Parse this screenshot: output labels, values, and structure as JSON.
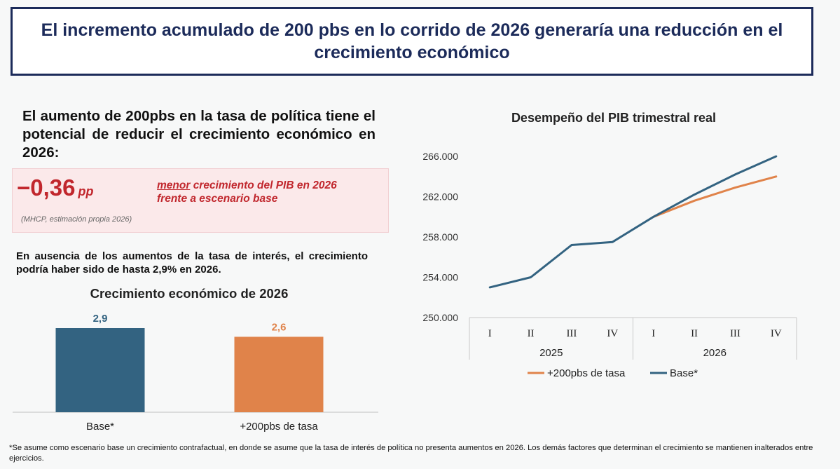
{
  "header": {
    "title": "El incremento acumulado de 200 pbs en lo corrido de 2026 generaría una reducción en el crecimiento económico"
  },
  "left_panel": {
    "lead_text": "El aumento de 200pbs en la tasa de política tiene el potencial de reducir el crecimiento económico en 2026:",
    "highlight": {
      "value": "−0,36",
      "unit": "pp",
      "emphasis": "menor",
      "description": "crecimiento del PIB en 2026 frente a escenario base",
      "source": "(MHCP, estimación propia 2026)"
    },
    "paragraph": "En ausencia de los aumentos de la tasa de interés, el crecimiento podría haber sido de hasta 2,9% en 2026."
  },
  "footnote": "*Se asume como escenario base un crecimiento contrafactual, en donde se asume que la tasa de interés de política no presenta aumentos en 2026. Los demás factores que determinan el crecimiento se mantienen inalterados entre ejercicios.",
  "colors": {
    "base": "#336381",
    "scenario": "#e0834a",
    "navy": "#1c2b5a",
    "red": "#c1272d"
  },
  "chart_data": [
    {
      "type": "bar",
      "title": "Crecimiento económico de 2026",
      "categories": [
        "Base*",
        "+200pbs de tasa"
      ],
      "values": [
        2.9,
        2.6
      ],
      "value_labels": [
        "2,9",
        "2,6"
      ],
      "colors": [
        "#336381",
        "#e0834a"
      ],
      "ylim": [
        0,
        2.9
      ]
    },
    {
      "type": "line",
      "title": "Desempeño del PIB trimestral real",
      "x_quarters": [
        "I",
        "II",
        "III",
        "IV",
        "I",
        "II",
        "III",
        "IV"
      ],
      "x_years": [
        "2025",
        "2026"
      ],
      "ylim": [
        250000,
        266000
      ],
      "yticks": [
        250000,
        254000,
        258000,
        262000,
        266000
      ],
      "ytick_labels": [
        "250.000",
        "254.000",
        "258.000",
        "262.000",
        "266.000"
      ],
      "series": [
        {
          "name": "+200pbs de tasa",
          "color": "#e0834a",
          "values": [
            null,
            null,
            null,
            null,
            260000,
            261600,
            262900,
            264000
          ]
        },
        {
          "name": "Base*",
          "color": "#336381",
          "values": [
            253000,
            254000,
            257200,
            257500,
            260000,
            262200,
            264200,
            266000
          ]
        }
      ],
      "legend_position": "bottom"
    }
  ]
}
